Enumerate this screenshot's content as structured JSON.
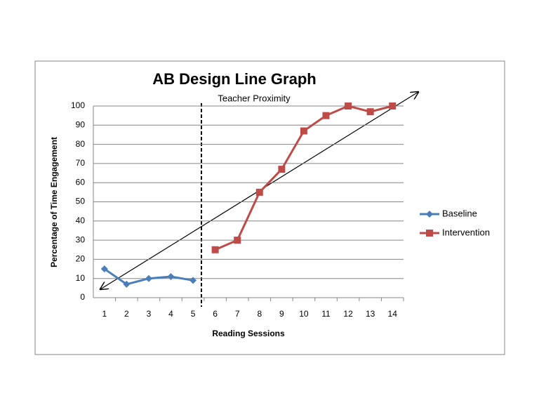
{
  "chart_data": {
    "type": "line",
    "title": "AB Design Line Graph",
    "x_label": "Reading Sessions",
    "y_label": "Percentage of Time Engagement",
    "annotation": "Teacher Proximity",
    "categories": [
      "1",
      "2",
      "3",
      "4",
      "5",
      "6",
      "7",
      "8",
      "9",
      "10",
      "11",
      "12",
      "13",
      "14"
    ],
    "series": [
      {
        "name": "Baseline",
        "color": "#4a7ebb",
        "marker": "diamond",
        "values": [
          15,
          7,
          10,
          11,
          9,
          null,
          null,
          null,
          null,
          null,
          null,
          null,
          null,
          null
        ]
      },
      {
        "name": "Intervention",
        "color": "#be4b48",
        "marker": "square",
        "values": [
          null,
          null,
          null,
          null,
          null,
          25,
          30,
          55,
          67,
          87,
          95,
          100,
          97,
          100
        ]
      }
    ],
    "ylim": [
      0,
      100
    ],
    "yticks": [
      0,
      10,
      20,
      30,
      40,
      50,
      60,
      70,
      80,
      90,
      100
    ],
    "grid": true,
    "legend": "right"
  }
}
